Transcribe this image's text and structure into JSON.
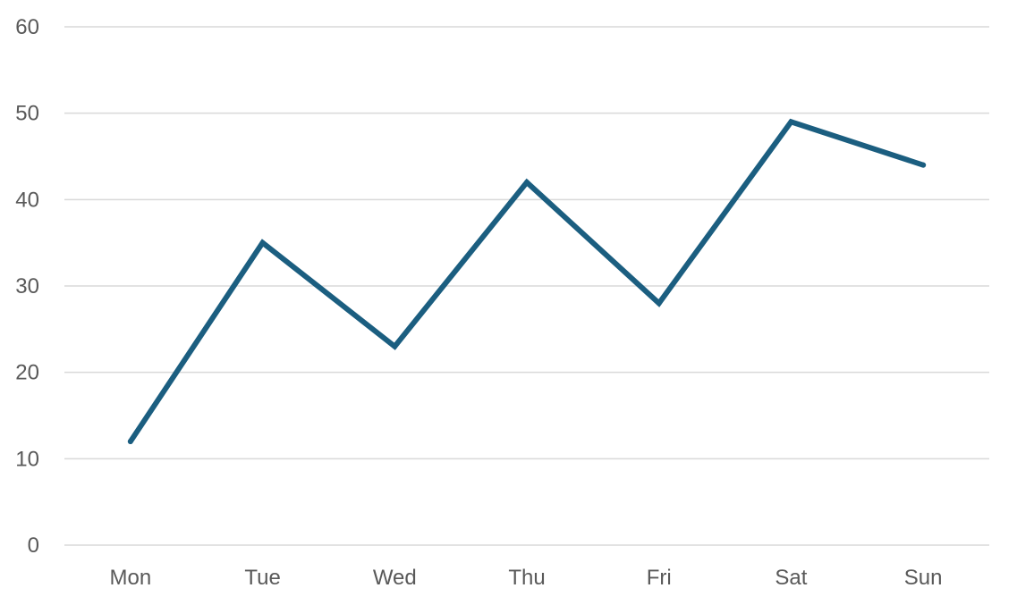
{
  "chart_data": {
    "type": "line",
    "categories": [
      "Mon",
      "Tue",
      "Wed",
      "Thu",
      "Fri",
      "Sat",
      "Sun"
    ],
    "series": [
      {
        "values": [
          12,
          35,
          23,
          42,
          28,
          49,
          44
        ],
        "color": "#1b5e80"
      }
    ],
    "ylim": [
      0,
      60
    ],
    "y_ticks": [
      0,
      10,
      20,
      30,
      40,
      50,
      60
    ],
    "grid": "horizontal",
    "legend": "none",
    "title": "",
    "xlabel": "",
    "ylabel": ""
  }
}
